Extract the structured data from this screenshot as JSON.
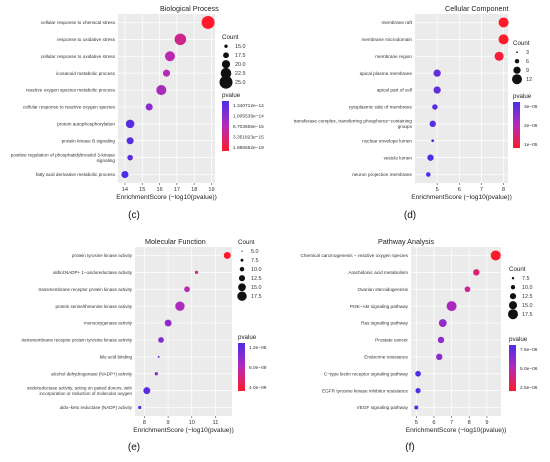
{
  "chart_data": [
    {
      "type": "scatter",
      "title": "Biological Process",
      "xlabel": "EnrichmentScore (−log10(pvalue))",
      "panel_label": "(c)",
      "xlim": [
        13.6,
        19.2
      ],
      "xticks": [
        14,
        15,
        16,
        17,
        18,
        19
      ],
      "categories": [
        "cellular response to chemical stress",
        "response to oxidative stress",
        "cellular response to oxidative stress",
        "icosanoid metabolic process",
        "reactive oxygen species metabolic process",
        "cellular response to reactive oxygen species",
        "protein autophosphorylation",
        "protein kinase B signaling",
        "positive regulation of phosphatidylinositol 3-kinase signaling",
        "fatty acid derivative metabolic process"
      ],
      "x": [
        18.8,
        17.2,
        16.6,
        16.4,
        16.1,
        15.4,
        14.3,
        14.3,
        14.3,
        14.0
      ],
      "count": [
        25,
        22.5,
        20,
        15,
        20,
        15,
        17.5,
        15,
        12.5,
        15
      ],
      "pvalue": [
        1.6e-19,
        6.7e-18,
        2.7e-17,
        4.2e-17,
        8e-17,
        3.8e-16,
        5e-15,
        5e-15,
        5e-15,
        1e-14
      ],
      "size_legend": {
        "title": "Count",
        "values": [
          "15.0",
          "17.5",
          "20.0",
          "22.5",
          "25.0"
        ]
      },
      "color_legend": {
        "title": "pvalue",
        "ticks": [
          "1.340712e−14",
          "1.005539e−14",
          "6.703655e−15",
          "3.351823e−15",
          "1.886552e−19"
        ]
      }
    },
    {
      "type": "scatter",
      "title": "Cellular Component",
      "xlabel": "EnrichmentScore (−log10(pvalue))",
      "panel_label": "(d)",
      "xlim": [
        4.0,
        8.2
      ],
      "xticks": [
        5,
        6,
        7,
        8
      ],
      "categories": [
        "membrane raft",
        "membrane microdomain",
        "membrane region",
        "apical plasma membrane",
        "apical part of cell",
        "cytoplasmic side of membrane",
        "transferase complex, transferring phosphorus−containing groups",
        "nuclear envelope lumen",
        "vesicle lumen",
        "neuron projection membrane"
      ],
      "x": [
        8.0,
        8.0,
        7.8,
        5.0,
        5.0,
        4.9,
        4.8,
        4.8,
        4.7,
        4.6
      ],
      "count": [
        11,
        11,
        10,
        8,
        8,
        6,
        7,
        3,
        7,
        5
      ],
      "pvalue": [
        1e-08,
        1e-08,
        1.6e-08,
        1e-05,
        1e-05,
        1.3e-05,
        1.6e-05,
        1.6e-05,
        2e-05,
        2.5e-05
      ],
      "size_legend": {
        "title": "Count",
        "values": [
          "3",
          "6",
          "9",
          "12"
        ]
      },
      "color_legend": {
        "title": "pvalue",
        "ticks": [
          "3e−05",
          "2e−05",
          "1e−05"
        ]
      }
    },
    {
      "type": "scatter",
      "title": "Molecular Function",
      "xlabel": "EnrichmentScore (−log10(pvalue))",
      "panel_label": "(e)",
      "xlim": [
        7.6,
        11.7
      ],
      "xticks": [
        8,
        9,
        10,
        11
      ],
      "categories": [
        "protein tyrosine kinase activity",
        "aldtol:NADP+ 1−oxidoreductase activity",
        "transmembrane receptor protein kinase activity",
        "protein serine/threonine kinase activity",
        "monooxygenase activity",
        "transmembrane receptor protein tyrosine kinase activity",
        "bile acid binding",
        "alcohol dehydrogenase (NADP+) activity",
        "oxidoreductase activity, acting on paired donors, with incorporation or reduction of molecular oxygen",
        "aldo−keto reductase (NADP) activity"
      ],
      "x": [
        11.5,
        10.2,
        9.8,
        9.5,
        9.0,
        8.7,
        8.6,
        8.5,
        8.1,
        7.8
      ],
      "count": [
        12.5,
        5,
        10,
        17.5,
        12.5,
        10,
        2.5,
        5,
        12.5,
        5
      ],
      "pvalue": [
        3e-12,
        6e-11,
        1.6e-10,
        3.2e-10,
        1e-09,
        2e-09,
        2.5e-09,
        3.2e-09,
        8e-09,
        1.6e-08
      ],
      "size_legend": {
        "title": "Count",
        "values": [
          "5.0",
          "7.5",
          "10.0",
          "12.5",
          "15.0",
          "17.5"
        ]
      },
      "color_legend": {
        "title": "pvalue",
        "ticks": [
          "1.2e−08",
          "8.0e−09",
          "4.0e−09"
        ]
      }
    },
    {
      "type": "scatter",
      "title": "Pathway Analysis",
      "xlabel": "EnrichmentScore (−log10(pvalue))",
      "panel_label": "(f)",
      "xlim": [
        4.7,
        9.8
      ],
      "xticks": [
        5,
        6,
        7,
        8,
        9
      ],
      "categories": [
        "Chemical carcinogenesis − reactive oxygen species",
        "Arachidonic acid metabolism",
        "Ovarian steroidogenesis",
        "PI3K−Akt signaling pathway",
        "Ras signaling pathway",
        "Prostate cancer",
        "Endocrine resistance",
        "C−type lectin receptor signaling pathway",
        "EGFR tyrosine kinase inhibitor resistance",
        "VEGF signaling pathway"
      ],
      "x": [
        9.5,
        8.4,
        7.9,
        7.0,
        6.5,
        6.4,
        6.3,
        5.1,
        5.1,
        5.0
      ],
      "count": [
        17.5,
        10,
        8.5,
        17.5,
        13,
        10,
        10,
        8.5,
        7.5,
        5
      ],
      "pvalue": [
        3.2e-10,
        4e-09,
        1.3e-08,
        1e-07,
        3.2e-07,
        4e-07,
        5e-07,
        8e-06,
        8e-06,
        1e-05
      ],
      "size_legend": {
        "title": "Count",
        "values": [
          "7.5",
          "10.0",
          "12.5",
          "15.0",
          "17.5"
        ]
      },
      "color_legend": {
        "title": "pvalue",
        "ticks": [
          "7.5e−06",
          "5.0e−06",
          "2.5e−06"
        ]
      }
    }
  ]
}
